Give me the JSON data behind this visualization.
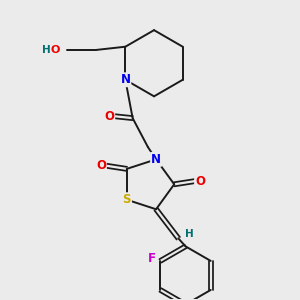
{
  "background_color": "#ebebeb",
  "figure_size": [
    3.0,
    3.0
  ],
  "dpi": 100,
  "atom_colors": {
    "C": "#1a1a1a",
    "N": "#0000ee",
    "O": "#ee0000",
    "S": "#ccaa00",
    "F": "#cc00cc",
    "H": "#007070"
  },
  "bond_color": "#1a1a1a",
  "bond_width": 1.4,
  "font_size_atom": 8.5
}
